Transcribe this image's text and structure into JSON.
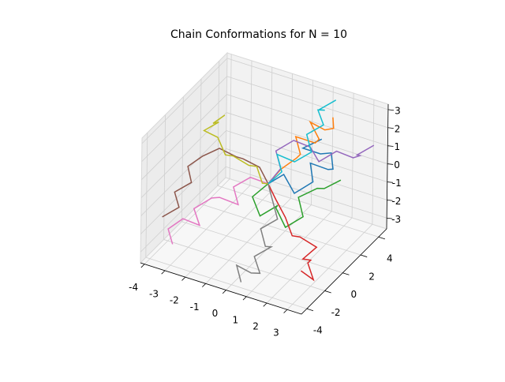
{
  "chart_data": {
    "type": "line3d",
    "title": "Chain Conformations for N = 10",
    "xlim": [
      -4.2,
      3.7
    ],
    "ylim": [
      -4.6,
      4.9
    ],
    "zlim": [
      -3.6,
      3.3
    ],
    "xticks": [
      -4,
      -3,
      -2,
      -1,
      0,
      1,
      2,
      3
    ],
    "yticks": [
      -4,
      -2,
      0,
      2,
      4
    ],
    "zticks": [
      -3,
      -2,
      -1,
      0,
      1,
      2,
      3
    ],
    "grid": true,
    "series": [
      {
        "color": "#1f77b4",
        "x": [
          0,
          0.5,
          1.2,
          1.8,
          1.4,
          2.1,
          2.6,
          2.2,
          1.5,
          0.9,
          1.6
        ],
        "y": [
          0,
          0.6,
          0.2,
          0.9,
          1.5,
          1.9,
          1.3,
          2.0,
          2.4,
          1.8,
          2.3
        ],
        "z": [
          0,
          0.4,
          -0.2,
          0.3,
          0.9,
          0.6,
          1.1,
          1.5,
          1.0,
          1.4,
          1.9
        ]
      },
      {
        "color": "#ff7f0e",
        "x": [
          0,
          0.4,
          0.9,
          1.3,
          0.8,
          1.5,
          1.9,
          1.2,
          1.7,
          2.3,
          2.0
        ],
        "y": [
          0,
          0.5,
          1.1,
          0.6,
          1.2,
          1.8,
          1.3,
          1.9,
          2.4,
          2.0,
          2.6
        ],
        "z": [
          0,
          0.7,
          1.2,
          1.8,
          2.3,
          1.9,
          2.5,
          2.9,
          2.4,
          2.9,
          3.1
        ]
      },
      {
        "color": "#2ca02c",
        "x": [
          0,
          -0.5,
          0.1,
          0.7,
          0.3,
          1.0,
          1.6,
          1.1,
          1.8,
          2.4,
          2.9
        ],
        "y": [
          0,
          -0.6,
          -1.1,
          -0.5,
          0.2,
          -0.3,
          0.3,
          0.9,
          1.4,
          0.8,
          1.5
        ],
        "z": [
          0,
          -0.6,
          -1.2,
          -0.7,
          -1.3,
          -1.9,
          -1.4,
          -0.8,
          -0.3,
          0.2,
          0.5
        ]
      },
      {
        "color": "#d62728",
        "x": [
          0,
          0.6,
          1.3,
          1.9,
          2.5,
          3.1,
          2.7,
          3.3,
          2.9,
          3.4,
          3.0
        ],
        "y": [
          0,
          -0.5,
          -1.0,
          -1.6,
          -2.1,
          -1.6,
          -2.2,
          -2.7,
          -2.1,
          -2.6,
          -3.1
        ],
        "z": [
          0,
          -0.4,
          -0.9,
          -1.4,
          -1.0,
          -1.6,
          -2.1,
          -1.7,
          -2.3,
          -2.8,
          -2.2
        ]
      },
      {
        "color": "#9467bd",
        "x": [
          0,
          0.3,
          -0.2,
          0.4,
          1.0,
          1.6,
          2.2,
          2.8,
          3.3,
          2.9,
          3.5
        ],
        "y": [
          0,
          0.7,
          1.3,
          1.9,
          2.4,
          2.0,
          2.6,
          3.1,
          2.7,
          3.3,
          3.8
        ],
        "z": [
          0,
          0.6,
          1.1,
          1.6,
          1.2,
          0.8,
          1.3,
          0.9,
          1.4,
          1.0,
          1.5
        ]
      },
      {
        "color": "#8c564b",
        "x": [
          0,
          -0.6,
          -1.2,
          -1.8,
          -2.4,
          -3.0,
          -3.5,
          -3.1,
          -3.7,
          -3.3,
          -3.9
        ],
        "y": [
          0,
          0.4,
          -0.1,
          0.5,
          0.0,
          -0.5,
          -1.0,
          -1.5,
          -2.0,
          -2.4,
          -2.9
        ],
        "z": [
          0,
          0.5,
          1.0,
          0.6,
          1.1,
          0.7,
          0.2,
          -0.3,
          -0.8,
          -1.3,
          -1.8
        ]
      },
      {
        "color": "#e377c2",
        "x": [
          0,
          -0.7,
          -1.3,
          -0.8,
          -1.5,
          -2.1,
          -2.7,
          -2.2,
          -2.8,
          -3.3,
          -2.9
        ],
        "y": [
          0,
          -0.4,
          -0.9,
          -1.5,
          -2.0,
          -1.5,
          -2.1,
          -2.6,
          -3.1,
          -3.6,
          -4.0
        ],
        "z": [
          0,
          0.3,
          -0.2,
          -0.7,
          -0.3,
          -0.8,
          -1.3,
          -1.8,
          -1.4,
          -1.9,
          -2.4
        ]
      },
      {
        "color": "#7f7f7f",
        "x": [
          0,
          0.5,
          1.0,
          0.4,
          0.9,
          1.4,
          0.8,
          1.3,
          0.7,
          0.2,
          0.6
        ],
        "y": [
          0,
          -0.6,
          -1.2,
          -1.7,
          -2.3,
          -2.8,
          -3.3,
          -3.8,
          -3.4,
          -3.9,
          -4.3
        ],
        "z": [
          0,
          -0.5,
          -1.0,
          -1.5,
          -2.0,
          -1.6,
          -2.1,
          -2.6,
          -3.0,
          -2.5,
          -3.1
        ]
      },
      {
        "color": "#bcbd22",
        "x": [
          0,
          -0.5,
          -1.0,
          -1.6,
          -2.2,
          -2.8,
          -3.4,
          -3.9,
          -3.4,
          -3.9,
          -3.5
        ],
        "y": [
          0,
          0.5,
          1.0,
          1.5,
          1.1,
          1.6,
          2.1,
          1.7,
          2.2,
          2.7,
          3.1
        ],
        "z": [
          0,
          -0.4,
          0.1,
          -0.3,
          0.2,
          -0.2,
          0.3,
          0.7,
          1.1,
          0.6,
          1.0
        ]
      },
      {
        "color": "#17becf",
        "x": [
          0,
          0.4,
          -0.1,
          0.5,
          1.1,
          0.6,
          1.2,
          0.7,
          1.3,
          0.8,
          1.4
        ],
        "y": [
          0,
          0.6,
          1.2,
          1.8,
          2.3,
          2.9,
          3.4,
          3.9,
          3.3,
          3.8,
          4.3
        ],
        "z": [
          0,
          0.5,
          1.0,
          0.5,
          1.0,
          1.5,
          2.0,
          2.4,
          2.9,
          2.5,
          3.0
        ]
      }
    ]
  }
}
